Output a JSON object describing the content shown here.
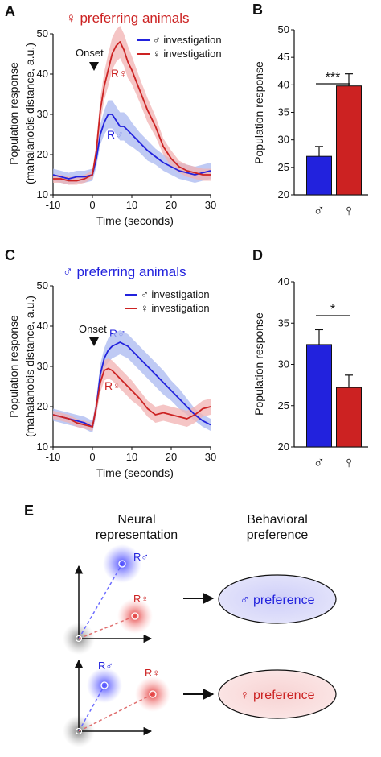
{
  "colors": {
    "blue": "#2222dd",
    "red": "#cc2222",
    "blue_band": "#aab8f0",
    "red_band": "#f2b2b2"
  },
  "panel_labels": {
    "a": "A",
    "b": "B",
    "c": "C",
    "d": "D",
    "e": "E"
  },
  "chart_data": [
    {
      "panel": "A",
      "type": "line",
      "title": "♀ preferring animals",
      "xlabel": "Time (seconds)",
      "ylabel_line1": "Population response",
      "ylabel_line2": "(mahalanobis distance, a.u.)",
      "xlim": [
        -10,
        30
      ],
      "ylim": [
        10,
        50
      ],
      "xticks": [
        "-10",
        "0",
        "10",
        "20",
        "30"
      ],
      "yticks": [
        "10",
        "20",
        "30",
        "40",
        "50"
      ],
      "onset_label": "Onset",
      "x": [
        -10,
        -8,
        -6,
        -4,
        -2,
        0,
        1,
        2,
        3,
        4,
        5,
        6,
        7,
        8,
        9,
        10,
        12,
        14,
        16,
        18,
        20,
        22,
        24,
        26,
        28,
        30
      ],
      "series": [
        {
          "name": "♂ investigation",
          "color_key": "blue",
          "curve_label": "R♂",
          "values": [
            15,
            14.5,
            14,
            14.5,
            14.5,
            15,
            19,
            25,
            28,
            30,
            30,
            28.5,
            27,
            27,
            26,
            25,
            23,
            21,
            19.5,
            18,
            17,
            16,
            15.5,
            15,
            15.5,
            16
          ],
          "err": [
            1.5,
            1.5,
            1.5,
            1.5,
            1.5,
            1.5,
            2,
            2.5,
            3,
            3.5,
            3.5,
            3.5,
            3.5,
            3.5,
            3.5,
            3,
            2.5,
            2.5,
            2,
            2,
            2,
            2,
            2,
            2,
            2,
            2
          ]
        },
        {
          "name": "♀ investigation",
          "color_key": "red",
          "curve_label": "R♀",
          "values": [
            14,
            14,
            13.5,
            13.5,
            14,
            15,
            21,
            31,
            37,
            41,
            45,
            47,
            48,
            46,
            43,
            41,
            36,
            31,
            27,
            22,
            19,
            17,
            16,
            15.5,
            15,
            15
          ],
          "err": [
            1,
            1,
            1,
            1,
            1,
            1,
            2,
            3,
            3.5,
            4,
            4,
            4,
            4,
            4,
            4,
            3.5,
            3,
            3,
            2.5,
            2,
            2,
            1.5,
            1.5,
            1.5,
            1.5,
            1.5
          ]
        }
      ]
    },
    {
      "panel": "B",
      "type": "bar",
      "ylabel": "Population response",
      "ylim": [
        20,
        50
      ],
      "yticks": [
        "20",
        "25",
        "30",
        "35",
        "40",
        "45",
        "50"
      ],
      "categories": [
        "♂",
        "♀"
      ],
      "values": [
        27,
        39.8
      ],
      "err": [
        1.8,
        2.2
      ],
      "bar_colors": [
        "blue",
        "red"
      ],
      "significance": "***"
    },
    {
      "panel": "C",
      "type": "line",
      "title": "♂ preferring animals",
      "xlabel": "Time (seconds)",
      "ylabel_line1": "Population response",
      "ylabel_line2": "(mahalanobis distance, a.u.)",
      "xlim": [
        -10,
        30
      ],
      "ylim": [
        10,
        50
      ],
      "xticks": [
        "-10",
        "0",
        "10",
        "20",
        "30"
      ],
      "yticks": [
        "10",
        "20",
        "30",
        "40",
        "50"
      ],
      "onset_label": "Onset",
      "x": [
        -10,
        -8,
        -6,
        -4,
        -2,
        0,
        1,
        2,
        3,
        4,
        5,
        6,
        7,
        8,
        9,
        10,
        12,
        14,
        16,
        18,
        20,
        22,
        24,
        26,
        28,
        30
      ],
      "series": [
        {
          "name": "♂ investigation",
          "color_key": "blue",
          "curve_label": "R♂",
          "values": [
            18,
            17.5,
            17,
            16.5,
            16,
            15,
            20,
            28,
            32,
            34,
            35,
            35.5,
            36,
            35.5,
            35,
            34,
            32,
            30,
            28,
            26,
            24,
            22,
            20,
            18,
            16.5,
            15.5
          ],
          "err": [
            1.5,
            1.5,
            1.5,
            1.5,
            1.5,
            1.5,
            2,
            2.5,
            2.5,
            3,
            3,
            3,
            3,
            3,
            3,
            3,
            3,
            3,
            3,
            3,
            2.5,
            2.5,
            2,
            1.5,
            1.5,
            1.5
          ]
        },
        {
          "name": "♀ investigation",
          "color_key": "red",
          "curve_label": "R♀",
          "values": [
            18,
            17.5,
            17,
            16,
            15.5,
            15,
            20,
            26,
            29,
            29.5,
            29,
            28,
            27,
            26,
            25,
            24,
            22,
            19.5,
            18,
            18.5,
            18,
            17.5,
            17,
            18,
            19.5,
            20
          ],
          "err": [
            1,
            1,
            1,
            1,
            1,
            1,
            2,
            2.5,
            2.5,
            2.5,
            2.5,
            2.5,
            2.5,
            2.5,
            2.5,
            2.5,
            2,
            2,
            2,
            2,
            2,
            2,
            2,
            2,
            2,
            2
          ]
        }
      ]
    },
    {
      "panel": "D",
      "type": "bar",
      "ylabel": "Population response",
      "ylim": [
        20,
        40
      ],
      "yticks": [
        "20",
        "25",
        "30",
        "35",
        "40"
      ],
      "categories": [
        "♂",
        "♀"
      ],
      "values": [
        32.4,
        27.2
      ],
      "err": [
        1.8,
        1.5
      ],
      "bar_colors": [
        "blue",
        "red"
      ],
      "significance": "*"
    }
  ],
  "panel_e": {
    "header_left_line1": "Neural",
    "header_left_line2": "representation",
    "header_right_line1": "Behavioral",
    "header_right_line2": "preference",
    "label_r_male": "R♂",
    "label_r_female": "R♀",
    "top_preference": "♂ preference",
    "bottom_preference": "♀ preference"
  }
}
